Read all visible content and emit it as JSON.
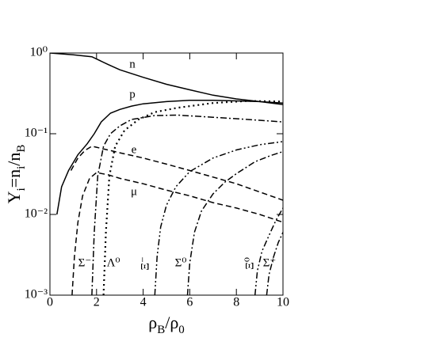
{
  "chart_data": {
    "type": "line",
    "xlabel": [
      "ρ",
      "B",
      "/ρ",
      "0"
    ],
    "ylabel": [
      "Y",
      "i",
      "=n",
      "i",
      "/n",
      "B"
    ],
    "xlim": [
      0,
      10
    ],
    "xticks": [
      0,
      2,
      4,
      6,
      8,
      10
    ],
    "ylim": [
      0.001,
      1
    ],
    "yscale": "log",
    "yticks": [
      {
        "value": 1,
        "label": "10⁰"
      },
      {
        "value": 0.1,
        "label": "10⁻¹"
      },
      {
        "value": 0.01,
        "label": "10⁻²"
      },
      {
        "value": 0.001,
        "label": "10⁻³"
      }
    ],
    "series": [
      {
        "name": "n",
        "color": "#000000",
        "style": "solid",
        "x": [
          0,
          1,
          1.8,
          2.5,
          3,
          4,
          5,
          6,
          7,
          8,
          9,
          10
        ],
        "values": [
          1,
          0.95,
          0.9,
          0.72,
          0.62,
          0.5,
          0.41,
          0.35,
          0.3,
          0.27,
          0.25,
          0.23
        ]
      },
      {
        "name": "p",
        "color": "#000000",
        "style": "solid",
        "x": [
          0.3,
          0.5,
          0.8,
          1.2,
          1.6,
          1.9,
          2.2,
          2.6,
          3,
          3.5,
          4,
          5,
          6,
          7,
          8,
          9,
          10
        ],
        "values": [
          0.01,
          0.022,
          0.035,
          0.055,
          0.075,
          0.1,
          0.14,
          0.18,
          0.2,
          0.22,
          0.235,
          0.25,
          0.26,
          0.26,
          0.255,
          0.25,
          0.24
        ]
      },
      {
        "name": "e",
        "color": "#000000",
        "style": "dashed",
        "x": [
          0.9,
          1.2,
          1.5,
          1.8,
          2,
          3,
          4,
          5,
          6,
          7,
          8,
          9,
          10
        ],
        "values": [
          0.035,
          0.05,
          0.062,
          0.07,
          0.068,
          0.058,
          0.05,
          0.042,
          0.035,
          0.029,
          0.024,
          0.019,
          0.015
        ]
      },
      {
        "name": "μ",
        "color": "#000000",
        "style": "dashed",
        "x": [
          0.95,
          1.05,
          1.2,
          1.4,
          1.7,
          2,
          2.5,
          3,
          4,
          5,
          6,
          7,
          8,
          9,
          10
        ],
        "values": [
          0.001,
          0.003,
          0.008,
          0.017,
          0.028,
          0.033,
          0.031,
          0.028,
          0.024,
          0.02,
          0.017,
          0.014,
          0.012,
          0.01,
          0.008
        ]
      },
      {
        "name": "Σ⁻",
        "color": "#000000",
        "style": "dashdot",
        "x": [
          1.8,
          1.9,
          2.05,
          2.3,
          2.6,
          3,
          3.5,
          4.5,
          5.5,
          7,
          8.5,
          10
        ],
        "values": [
          0.001,
          0.006,
          0.03,
          0.07,
          0.1,
          0.125,
          0.15,
          0.168,
          0.17,
          0.16,
          0.15,
          0.14
        ]
      },
      {
        "name": "Λ⁰",
        "color": "#000000",
        "style": "dotted",
        "x": [
          2.3,
          2.4,
          2.55,
          2.8,
          3.2,
          3.8,
          4.5,
          5.5,
          7,
          8.5,
          10
        ],
        "values": [
          0.001,
          0.006,
          0.03,
          0.07,
          0.11,
          0.15,
          0.185,
          0.21,
          0.24,
          0.255,
          0.25
        ]
      },
      {
        "name": "Ξ⁻",
        "color": "#000000",
        "style": "dashdotdot",
        "x": [
          4.5,
          4.6,
          4.75,
          5,
          5.4,
          6,
          7,
          8,
          9,
          10
        ],
        "values": [
          0.001,
          0.003,
          0.007,
          0.013,
          0.022,
          0.034,
          0.05,
          0.063,
          0.073,
          0.08
        ]
      },
      {
        "name": "Σ⁰",
        "color": "#000000",
        "style": "dashdot",
        "x": [
          5.9,
          6,
          6.2,
          6.5,
          7,
          7.5,
          8,
          8.8,
          9.5,
          10
        ],
        "values": [
          0.001,
          0.0025,
          0.006,
          0.011,
          0.018,
          0.025,
          0.032,
          0.045,
          0.054,
          0.06
        ]
      },
      {
        "name": "Ξ⁰",
        "color": "#000000",
        "style": "dashdotdot",
        "x": [
          8.8,
          8.9,
          9.1,
          9.4,
          9.7,
          10
        ],
        "values": [
          0.001,
          0.002,
          0.0035,
          0.0055,
          0.0085,
          0.012
        ]
      },
      {
        "name": "Σ⁺",
        "color": "#000000",
        "style": "dashdot",
        "x": [
          9.3,
          9.4,
          9.6,
          9.8,
          10
        ],
        "values": [
          0.001,
          0.0018,
          0.003,
          0.0045,
          0.006
        ]
      }
    ]
  }
}
